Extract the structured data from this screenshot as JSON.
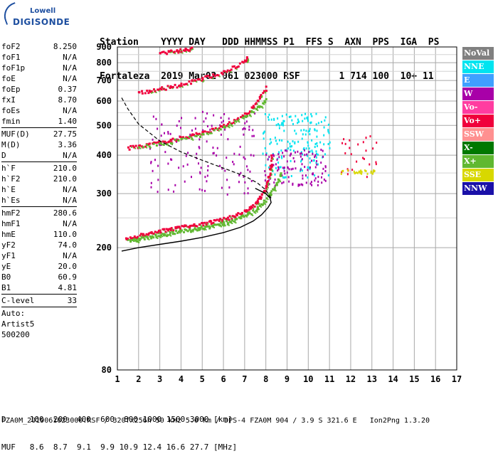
{
  "logo": {
    "brand_top": "Lowell",
    "brand_bottom": "DIGISONDE"
  },
  "header": {
    "line1": "Station    YYYY DAY   DDD HHMMSS P1  FFS S  AXN  PPS  IGA  PS",
    "line2": "Fortaleza  2019 Mar02 061 023000 RSF       1 714 100  10+ 11"
  },
  "params": [
    {
      "label": "foF2",
      "value": "8.250"
    },
    {
      "label": "foF1",
      "value": "N/A"
    },
    {
      "label": "foF1p",
      "value": "N/A"
    },
    {
      "label": "foE",
      "value": "N/A"
    },
    {
      "label": "foEp",
      "value": "0.37"
    },
    {
      "label": "fxI",
      "value": "8.70"
    },
    {
      "label": "foEs",
      "value": "N/A"
    },
    {
      "label": "fmin",
      "value": "1.40"
    },
    {
      "sep": true
    },
    {
      "label": "MUF(D)",
      "value": "27.75"
    },
    {
      "label": "M(D)",
      "value": "3.36"
    },
    {
      "label": "D",
      "value": "N/A"
    },
    {
      "sep": true
    },
    {
      "label": "h`F",
      "value": "210.0"
    },
    {
      "label": "h`F2",
      "value": "210.0"
    },
    {
      "label": "h`E",
      "value": "N/A"
    },
    {
      "label": "h`Es",
      "value": "N/A"
    },
    {
      "sep": true
    },
    {
      "label": "hmF2",
      "value": "280.6"
    },
    {
      "label": "hmF1",
      "value": "N/A"
    },
    {
      "label": "hmE",
      "value": "110.0"
    },
    {
      "label": "yF2",
      "value": "74.0"
    },
    {
      "label": "yF1",
      "value": "N/A"
    },
    {
      "label": "yE",
      "value": "20.0"
    },
    {
      "label": "B0",
      "value": "60.9"
    },
    {
      "label": "B1",
      "value": "4.81"
    },
    {
      "sep": true
    },
    {
      "label": "C-level",
      "value": "33"
    },
    {
      "sep": true
    }
  ],
  "auto": {
    "line1": "Auto:",
    "line2": "Artist5",
    "line3": "500200"
  },
  "legend": [
    {
      "label": "NoVal",
      "color": "#808080"
    },
    {
      "label": "NNE",
      "color": "#00e4f0"
    },
    {
      "label": "E",
      "color": "#3fa0ff"
    },
    {
      "label": "W",
      "color": "#a800a8"
    },
    {
      "label": "Vo-",
      "color": "#ff3ca0"
    },
    {
      "label": "Vo+",
      "color": "#f0003c"
    },
    {
      "label": "SSW",
      "color": "#ff9090"
    },
    {
      "label": "X-",
      "color": "#007800"
    },
    {
      "label": "X+",
      "color": "#60b830"
    },
    {
      "label": "SSE",
      "color": "#d8d800"
    },
    {
      "label": "NNW",
      "color": "#1a10a8"
    }
  ],
  "bottom": {
    "line1": "D     100  200  400  600  800 1000 1500 3000 [km]",
    "line2": "MUF   8.6  8.7  9.1  9.9 10.9 12.4 16.6 27.7 [MHz]"
  },
  "footer": "FZA0M_2019061023000.RSF / 320fx256h 50 kHz 5.0 km / DPS-4 FZA0M 904 / 3.9 S 321.6 E   Ion2Png 1.3.20",
  "chart_data": {
    "type": "scatter",
    "title": "",
    "xlabel": "",
    "ylabel": "",
    "xlim": [
      1,
      17
    ],
    "ylim": [
      80,
      900
    ],
    "y_scale": "log",
    "xticks": [
      1,
      2,
      3,
      4,
      5,
      6,
      7,
      8,
      9,
      10,
      11,
      12,
      13,
      14,
      15,
      16,
      17
    ],
    "yticks": [
      80,
      200,
      300,
      400,
      500,
      600,
      700,
      800,
      900
    ],
    "grid": true,
    "legend_position": "right",
    "traces": [
      {
        "name": "O-trace (1st hop)",
        "color": "#f0003c",
        "points": [
          [
            1.4,
            215
          ],
          [
            1.8,
            218
          ],
          [
            2.2,
            222
          ],
          [
            2.6,
            225
          ],
          [
            3.0,
            228
          ],
          [
            3.4,
            230
          ],
          [
            3.8,
            233
          ],
          [
            4.2,
            236
          ],
          [
            4.6,
            238
          ],
          [
            5.0,
            241
          ],
          [
            5.4,
            244
          ],
          [
            5.8,
            247
          ],
          [
            6.2,
            251
          ],
          [
            6.6,
            257
          ],
          [
            7.0,
            265
          ],
          [
            7.3,
            273
          ],
          [
            7.6,
            285
          ],
          [
            7.8,
            298
          ],
          [
            8.0,
            318
          ],
          [
            8.1,
            340
          ],
          [
            8.2,
            370
          ],
          [
            8.25,
            400
          ]
        ]
      },
      {
        "name": "X-trace (1st hop)",
        "color": "#60b830",
        "points": [
          [
            1.6,
            212
          ],
          [
            2.0,
            214
          ],
          [
            2.4,
            217
          ],
          [
            2.8,
            220
          ],
          [
            3.2,
            222
          ],
          [
            3.6,
            225
          ],
          [
            4.0,
            228
          ],
          [
            4.4,
            230
          ],
          [
            4.8,
            232
          ],
          [
            5.2,
            235
          ],
          [
            5.6,
            238
          ],
          [
            6.0,
            242
          ],
          [
            6.4,
            246
          ],
          [
            6.8,
            252
          ],
          [
            7.2,
            260
          ],
          [
            7.6,
            272
          ],
          [
            7.9,
            285
          ],
          [
            8.2,
            302
          ],
          [
            8.5,
            325
          ],
          [
            8.7,
            350
          ]
        ]
      },
      {
        "name": "O-trace (2nd hop)",
        "color": "#f0003c",
        "points": [
          [
            1.5,
            425
          ],
          [
            2.0,
            430
          ],
          [
            2.5,
            437
          ],
          [
            3.0,
            443
          ],
          [
            3.5,
            450
          ],
          [
            4.0,
            458
          ],
          [
            4.5,
            466
          ],
          [
            5.0,
            476
          ],
          [
            5.5,
            488
          ],
          [
            6.0,
            503
          ],
          [
            6.5,
            522
          ],
          [
            7.0,
            548
          ],
          [
            7.4,
            580
          ],
          [
            7.7,
            620
          ],
          [
            8.0,
            670
          ]
        ]
      },
      {
        "name": "X-trace (2nd hop)",
        "color": "#60b830",
        "points": [
          [
            2.0,
            425
          ],
          [
            3.0,
            438
          ],
          [
            4.0,
            452
          ],
          [
            5.0,
            470
          ],
          [
            6.0,
            495
          ],
          [
            7.0,
            535
          ],
          [
            7.6,
            575
          ],
          [
            8.0,
            610
          ]
        ]
      },
      {
        "name": "O-trace (3rd hop)",
        "color": "#f0003c",
        "points": [
          [
            2.0,
            643
          ],
          [
            2.5,
            650
          ],
          [
            3.0,
            660
          ],
          [
            3.5,
            672
          ],
          [
            4.0,
            685
          ],
          [
            4.5,
            700
          ],
          [
            5.0,
            716
          ],
          [
            5.5,
            733
          ],
          [
            6.0,
            752
          ],
          [
            6.5,
            780
          ],
          [
            7.0,
            815
          ],
          [
            7.1,
            835
          ]
        ]
      },
      {
        "name": "O-trace (4th hop)",
        "color": "#f0003c",
        "points": [
          [
            3.0,
            862
          ],
          [
            3.4,
            870
          ],
          [
            3.8,
            880
          ],
          [
            4.2,
            890
          ],
          [
            4.5,
            898
          ]
        ]
      }
    ],
    "profile": {
      "name": "electron density profile",
      "color": "#000000",
      "points": [
        [
          1.2,
          195
        ],
        [
          2.0,
          200
        ],
        [
          3.0,
          205
        ],
        [
          4.0,
          210
        ],
        [
          5.0,
          216
        ],
        [
          6.0,
          224
        ],
        [
          6.8,
          233
        ],
        [
          7.4,
          244
        ],
        [
          7.8,
          256
        ],
        [
          8.1,
          270
        ],
        [
          8.25,
          280.6
        ],
        [
          8.2,
          290
        ],
        [
          8.0,
          300
        ],
        [
          7.5,
          312
        ]
      ]
    },
    "muf_curve": {
      "name": "MUF(D) transmission curve",
      "color": "#000000",
      "style": "dashed",
      "points": [
        [
          1.2,
          615
        ],
        [
          1.5,
          565
        ],
        [
          2.0,
          505
        ],
        [
          3.0,
          445
        ],
        [
          4.0,
          410
        ],
        [
          5.0,
          385
        ],
        [
          6.0,
          363
        ],
        [
          7.0,
          342
        ],
        [
          7.6,
          325
        ],
        [
          8.0,
          308
        ],
        [
          8.25,
          290
        ]
      ]
    },
    "spread_clusters": [
      {
        "name": "NNE spread F",
        "color": "#00e4f0",
        "x_range": [
          7.8,
          11.0
        ],
        "y_range": [
          340,
          550
        ]
      },
      {
        "name": "W spread F",
        "color": "#a800a8",
        "x_range": [
          7.9,
          10.9
        ],
        "y_range": [
          320,
          420
        ]
      },
      {
        "name": "W echoes (oblique)",
        "color": "#a800a8",
        "x_range": [
          2.5,
          7.5
        ],
        "y_range": [
          300,
          560
        ]
      },
      {
        "name": "Vo+ oblique",
        "color": "#f0003c",
        "x_range": [
          11.5,
          13.3
        ],
        "y_range": [
          340,
          470
        ]
      },
      {
        "name": "SSE oblique",
        "color": "#d8d800",
        "x_range": [
          11.5,
          13.1
        ],
        "y_range": [
          350,
          360
        ]
      }
    ]
  }
}
